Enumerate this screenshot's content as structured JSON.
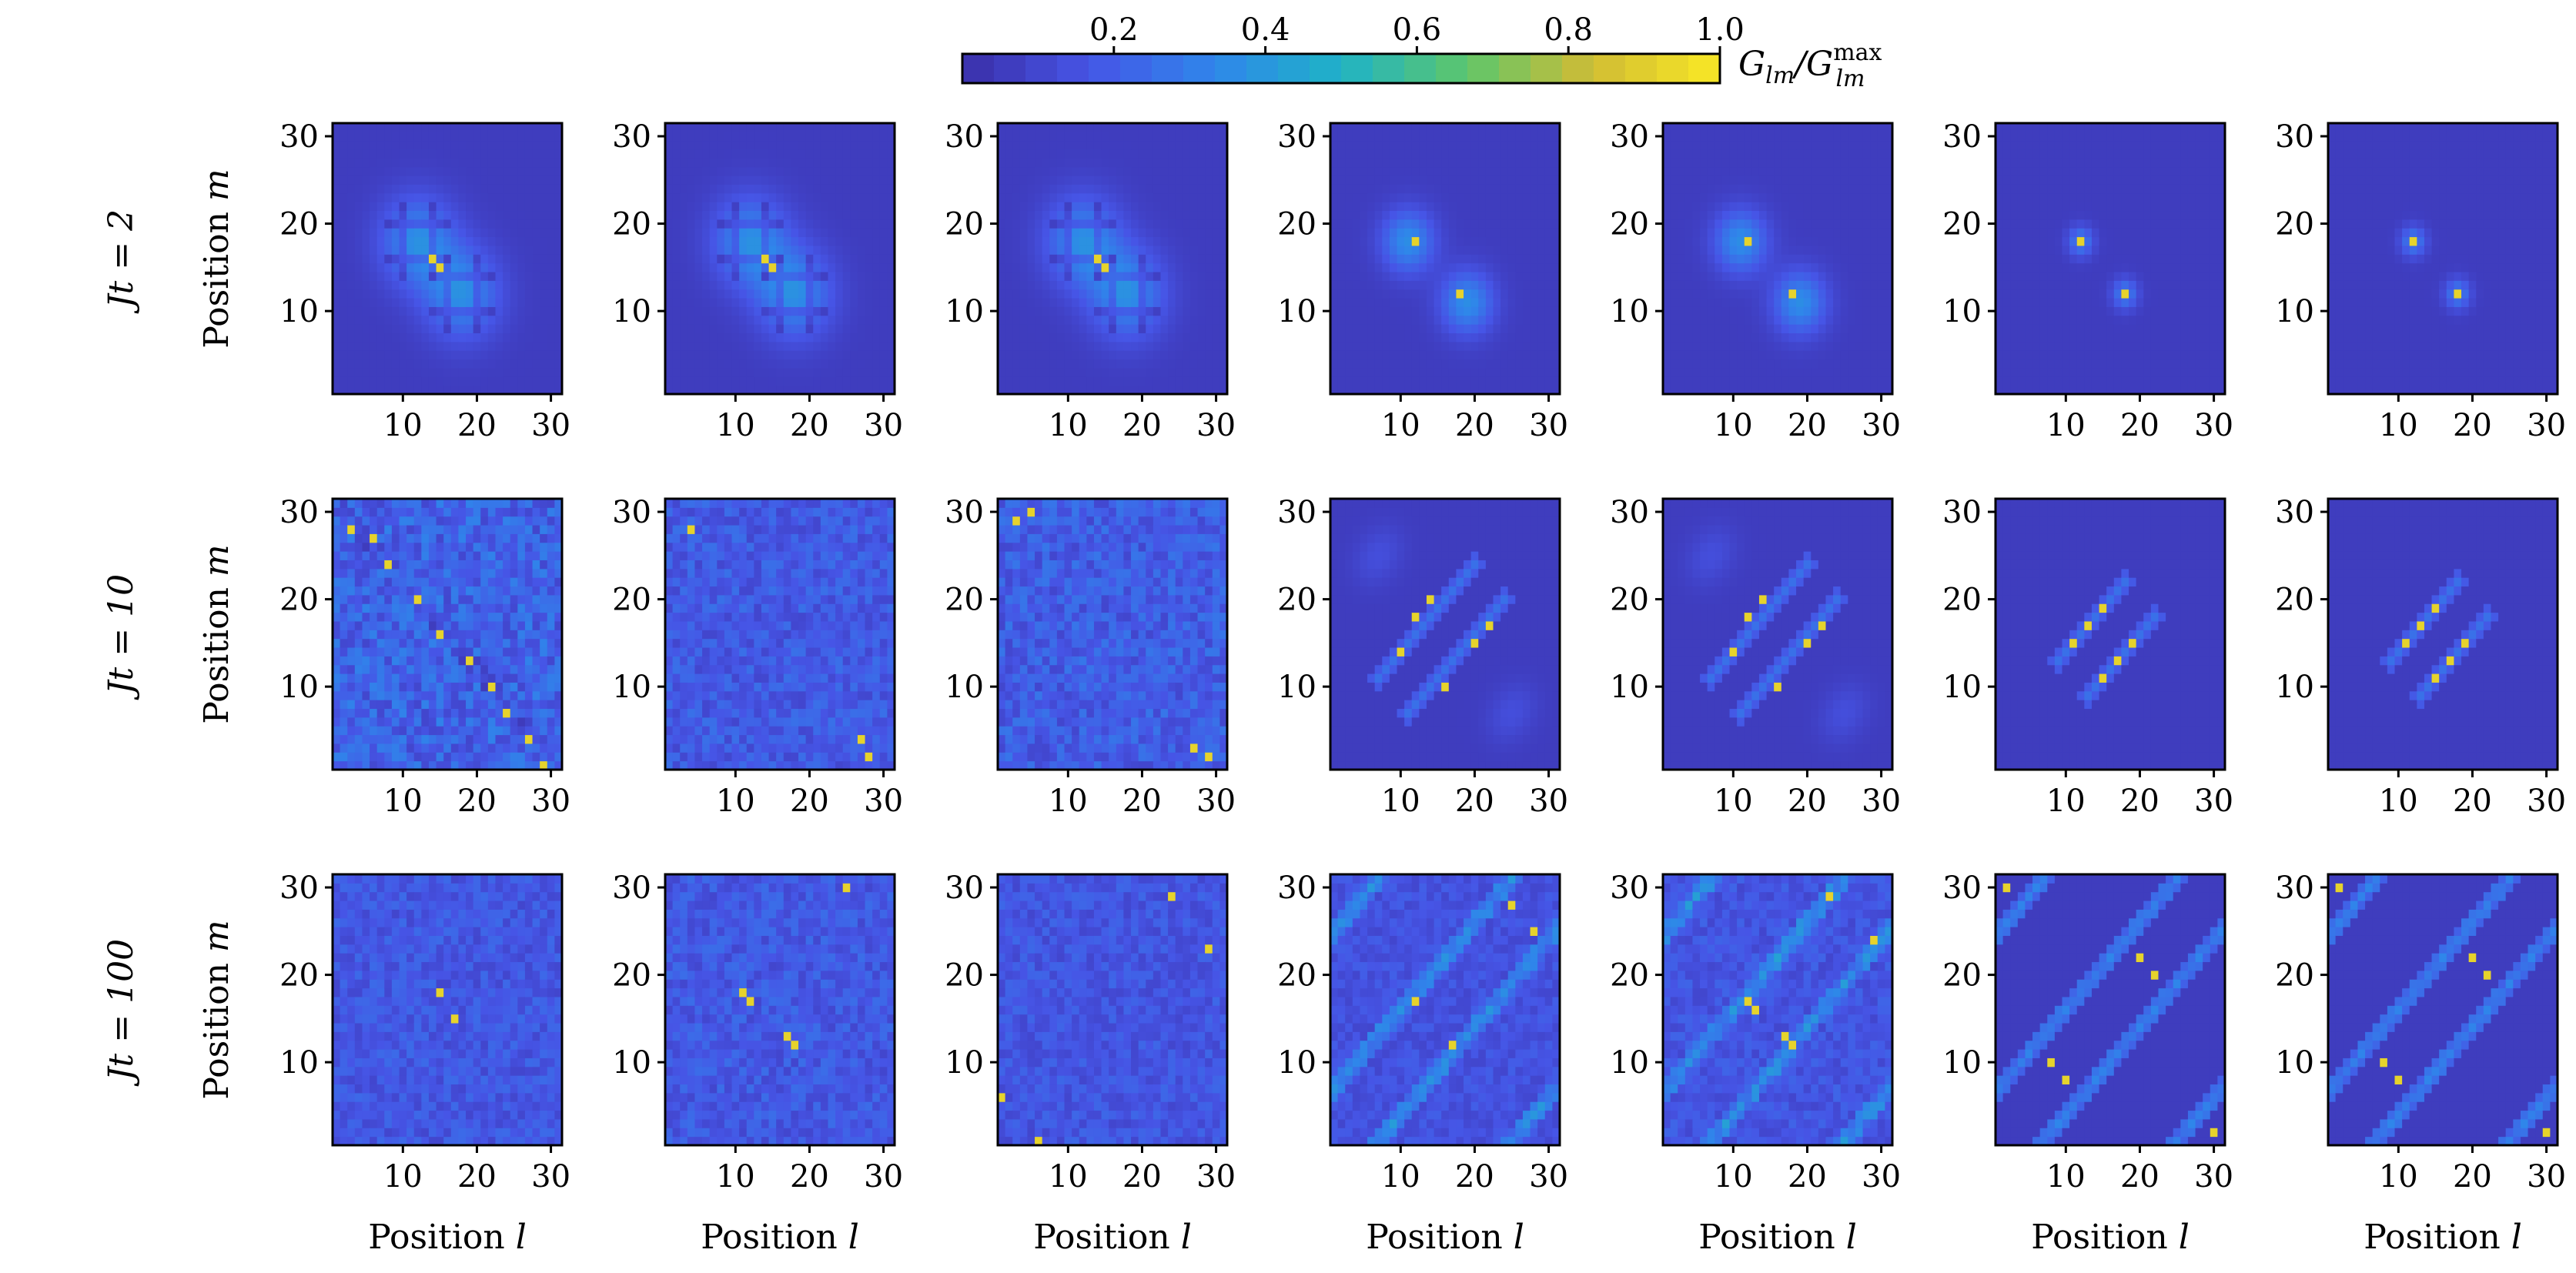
{
  "chart_data": {
    "type": "heatmap",
    "colorbar": {
      "label": "G_lm/G_lm^max",
      "label_main": "G",
      "label_sub": "lm",
      "label_slash": "/G",
      "label_sup": "max",
      "label_sub2": "lm",
      "ticks": [
        0.2,
        0.4,
        0.6,
        0.8,
        1.0
      ],
      "tick_labels": [
        "0.2",
        "0.4",
        "0.6",
        "0.8",
        "1.0"
      ],
      "range": [
        0.0,
        1.0
      ],
      "colors": [
        "#3b2fa8",
        "#4655e6",
        "#2f86ea",
        "#1fb3c6",
        "#5ec66b",
        "#d1bc34",
        "#f9e925"
      ]
    },
    "grid_size": 31,
    "xlabel": "Position l",
    "xlabel_word": "Position",
    "xlabel_var": "l",
    "ylabel": "Position m",
    "ylabel_word": "Position",
    "ylabel_var": "m",
    "xticks": [
      10,
      20,
      30
    ],
    "yticks": [
      10,
      20,
      30
    ],
    "xlim": [
      0.5,
      31.5
    ],
    "ylim": [
      0.5,
      31.5
    ],
    "rows": [
      {
        "label": "Jt = 2",
        "time": 2
      },
      {
        "label": "Jt = 10",
        "time": 10
      },
      {
        "label": "Jt = 100",
        "time": 100
      }
    ],
    "columns": 7,
    "panels": [
      [
        {
          "peaks": [
            [
              15,
              15
            ],
            [
              14,
              16
            ]
          ],
          "blobs": [
            [
              12,
              18,
              3.5,
              0.3
            ],
            [
              18,
              12,
              3.5,
              0.3
            ]
          ],
          "cross": true,
          "diag": null,
          "noise": 0.0
        },
        {
          "peaks": [
            [
              15,
              15
            ],
            [
              14,
              16
            ]
          ],
          "blobs": [
            [
              12,
              18,
              3.5,
              0.3
            ],
            [
              18,
              12,
              3.5,
              0.3
            ]
          ],
          "cross": true,
          "diag": null,
          "noise": 0.0
        },
        {
          "peaks": [
            [
              15,
              15
            ],
            [
              14,
              16
            ]
          ],
          "blobs": [
            [
              12,
              18,
              3.5,
              0.3
            ],
            [
              18,
              12,
              3.5,
              0.3
            ]
          ],
          "cross": true,
          "diag": null,
          "noise": 0.0
        },
        {
          "peaks": [
            [
              12,
              18
            ],
            [
              18,
              12
            ]
          ],
          "blobs": [
            [
              11,
              18,
              2.5,
              0.3
            ],
            [
              19,
              11,
              2.5,
              0.3
            ]
          ],
          "cross": false,
          "diag": null,
          "noise": 0.0
        },
        {
          "peaks": [
            [
              12,
              18
            ],
            [
              18,
              12
            ]
          ],
          "blobs": [
            [
              11,
              18,
              2.5,
              0.3
            ],
            [
              19,
              11,
              2.5,
              0.3
            ]
          ],
          "cross": false,
          "diag": null,
          "noise": 0.0
        },
        {
          "peaks": [
            [
              12,
              18
            ],
            [
              18,
              12
            ]
          ],
          "blobs": [
            [
              12,
              18,
              1.2,
              0.25
            ],
            [
              18,
              12,
              1.2,
              0.25
            ]
          ],
          "cross": false,
          "diag": null,
          "noise": 0.0
        },
        {
          "peaks": [
            [
              12,
              18
            ],
            [
              18,
              12
            ]
          ],
          "blobs": [
            [
              12,
              18,
              1.2,
              0.25
            ],
            [
              18,
              12,
              1.2,
              0.25
            ]
          ],
          "cross": false,
          "diag": null,
          "noise": 0.0
        }
      ],
      [
        {
          "peaks": [
            [
              3,
              28
            ],
            [
              6,
              27
            ],
            [
              8,
              24
            ],
            [
              12,
              20
            ],
            [
              15,
              16
            ],
            [
              19,
              13
            ],
            [
              22,
              10
            ],
            [
              24,
              7
            ],
            [
              27,
              4
            ],
            [
              29,
              1
            ]
          ],
          "blobs": [],
          "cross": false,
          "diag": "anti",
          "noise": 0.22
        },
        {
          "peaks": [
            [
              4,
              28
            ],
            [
              27,
              4
            ],
            [
              28,
              2
            ]
          ],
          "blobs": [],
          "cross": false,
          "diag": null,
          "noise": 0.16
        },
        {
          "peaks": [
            [
              3,
              29
            ],
            [
              5,
              30
            ],
            [
              27,
              3
            ],
            [
              29,
              2
            ]
          ],
          "blobs": [],
          "cross": false,
          "diag": null,
          "noise": 0.18
        },
        {
          "peaks": [
            [
              10,
              14
            ],
            [
              12,
              18
            ],
            [
              14,
              20
            ],
            [
              16,
              10
            ],
            [
              20,
              15
            ],
            [
              22,
              17
            ]
          ],
          "blobs": [],
          "cross": false,
          "diag": "pair",
          "noise": 0.0
        },
        {
          "peaks": [
            [
              10,
              14
            ],
            [
              12,
              18
            ],
            [
              14,
              20
            ],
            [
              16,
              10
            ],
            [
              20,
              15
            ],
            [
              22,
              17
            ]
          ],
          "blobs": [],
          "cross": false,
          "diag": "pair",
          "noise": 0.0
        },
        {
          "peaks": [
            [
              11,
              15
            ],
            [
              13,
              17
            ],
            [
              15,
              19
            ],
            [
              15,
              11
            ],
            [
              17,
              13
            ],
            [
              19,
              15
            ]
          ],
          "blobs": [],
          "cross": false,
          "diag": "pair-short",
          "noise": 0.0
        },
        {
          "peaks": [
            [
              11,
              15
            ],
            [
              13,
              17
            ],
            [
              15,
              19
            ],
            [
              15,
              11
            ],
            [
              17,
              13
            ],
            [
              19,
              15
            ]
          ],
          "blobs": [],
          "cross": false,
          "diag": "pair-short",
          "noise": 0.0
        }
      ],
      [
        {
          "peaks": [
            [
              15,
              18
            ],
            [
              17,
              15
            ]
          ],
          "blobs": [],
          "cross": false,
          "diag": null,
          "noise": 0.14
        },
        {
          "peaks": [
            [
              11,
              18
            ],
            [
              12,
              17
            ],
            [
              17,
              13
            ],
            [
              18,
              12
            ],
            [
              25,
              30
            ]
          ],
          "blobs": [],
          "cross": false,
          "diag": null,
          "noise": 0.15
        },
        {
          "peaks": [
            [
              24,
              29
            ],
            [
              29,
              23
            ],
            [
              1,
              6
            ],
            [
              6,
              1
            ]
          ],
          "blobs": [],
          "cross": false,
          "diag": null,
          "noise": 0.13
        },
        {
          "peaks": [
            [
              12,
              17
            ],
            [
              17,
              12
            ],
            [
              25,
              28
            ],
            [
              28,
              25
            ]
          ],
          "blobs": [],
          "cross": false,
          "diag": "band",
          "noise": 0.1
        },
        {
          "peaks": [
            [
              12,
              17
            ],
            [
              13,
              16
            ],
            [
              17,
              13
            ],
            [
              18,
              12
            ],
            [
              23,
              29
            ],
            [
              29,
              24
            ]
          ],
          "blobs": [],
          "cross": false,
          "diag": "band",
          "noise": 0.12
        },
        {
          "peaks": [
            [
              2,
              30
            ],
            [
              30,
              2
            ],
            [
              8,
              10
            ],
            [
              10,
              8
            ],
            [
              20,
              22
            ],
            [
              22,
              20
            ]
          ],
          "blobs": [],
          "cross": false,
          "diag": "band-clean",
          "noise": 0.0
        },
        {
          "peaks": [
            [
              2,
              30
            ],
            [
              30,
              2
            ],
            [
              8,
              10
            ],
            [
              10,
              8
            ],
            [
              20,
              22
            ],
            [
              22,
              20
            ]
          ],
          "blobs": [],
          "cross": false,
          "diag": "band-clean",
          "noise": 0.0
        }
      ]
    ]
  }
}
